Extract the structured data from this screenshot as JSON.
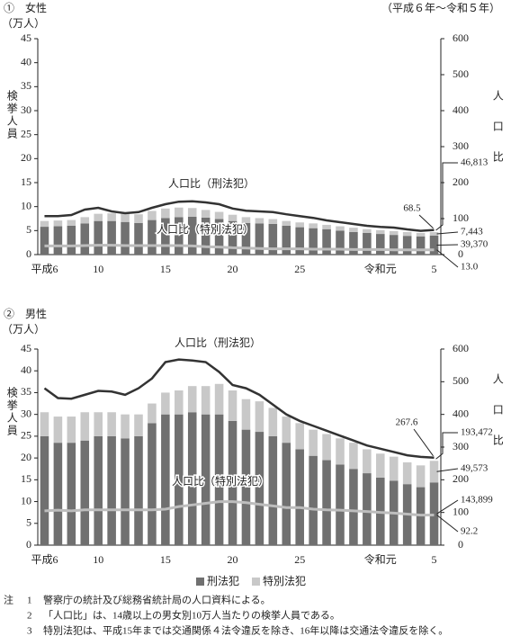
{
  "period": "（平成６年～令和５年）",
  "legend_items": [
    "刑法犯",
    "特別法犯"
  ],
  "notes_label": "注",
  "notes": [
    [
      "1",
      "警察庁の統計及び総務省統計局の人口資料による。"
    ],
    [
      "2",
      "「人口比」は、14歳以上の男女別10万人当たりの検挙人員である。"
    ],
    [
      "3",
      "特別法犯は、平成15年までは交通関係４法令違反を除き、16年以降は交通法令違反を除く。"
    ]
  ],
  "chart_data": [
    {
      "type": "bar",
      "stacked": true,
      "title": "①　女性",
      "y_unit": "（万人）",
      "y_label": "検挙人員",
      "y2_label": "人口比",
      "categories": [
        "平成6",
        null,
        null,
        null,
        "10",
        null,
        null,
        null,
        null,
        "15",
        null,
        null,
        null,
        null,
        "20",
        null,
        null,
        null,
        null,
        "25",
        null,
        null,
        null,
        null,
        null,
        "令和元",
        null,
        null,
        null,
        "5"
      ],
      "ylim": [
        0,
        45
      ],
      "yticks": [
        0,
        5,
        10,
        15,
        20,
        25,
        30,
        35,
        40,
        45
      ],
      "y2lim": [
        0,
        600
      ],
      "y2ticks": [
        0,
        100,
        200,
        300,
        400,
        500,
        600
      ],
      "total_label": "46,813",
      "legend": false,
      "series": [
        {
          "name": "刑法犯",
          "color": "#707070",
          "values": [
            5.8,
            5.9,
            6.0,
            6.5,
            7.0,
            7.0,
            6.8,
            6.6,
            7.2,
            7.6,
            7.8,
            7.9,
            7.7,
            7.4,
            7.0,
            6.6,
            6.5,
            6.4,
            6.0,
            5.7,
            5.5,
            5.3,
            5.0,
            4.7,
            4.5,
            4.3,
            4.1,
            3.9,
            3.8,
            3.937
          ],
          "value_labels": [
            null,
            null,
            null,
            null,
            null,
            null,
            null,
            null,
            null,
            null,
            null,
            null,
            null,
            null,
            null,
            null,
            null,
            null,
            null,
            null,
            null,
            null,
            null,
            null,
            null,
            null,
            null,
            null,
            null,
            "39,370"
          ]
        },
        {
          "name": "特別法犯",
          "color": "#c8c8c8",
          "values": [
            1.2,
            1.2,
            1.2,
            1.3,
            1.5,
            1.6,
            1.7,
            1.8,
            1.9,
            2.0,
            2.0,
            1.8,
            1.6,
            1.5,
            1.3,
            1.2,
            1.1,
            1.0,
            1.0,
            1.0,
            1.0,
            0.9,
            0.9,
            0.9,
            0.8,
            0.8,
            0.8,
            0.8,
            0.7,
            0.7443
          ],
          "value_labels": [
            null,
            null,
            null,
            null,
            null,
            null,
            null,
            null,
            null,
            null,
            null,
            null,
            null,
            null,
            null,
            null,
            null,
            null,
            null,
            null,
            null,
            null,
            null,
            null,
            null,
            null,
            null,
            null,
            null,
            "7,443"
          ]
        },
        {
          "name": "人口比（刑法犯）",
          "type": "line",
          "axis": "y2",
          "color": "#333333",
          "values": [
            107,
            107,
            110,
            125,
            130,
            120,
            115,
            118,
            130,
            140,
            147,
            148,
            145,
            140,
            128,
            122,
            120,
            118,
            112,
            107,
            102,
            95,
            90,
            85,
            80,
            77,
            75,
            70,
            66,
            68.5
          ],
          "value_labels": [
            null,
            null,
            null,
            null,
            null,
            null,
            null,
            null,
            null,
            null,
            null,
            null,
            null,
            null,
            null,
            null,
            null,
            null,
            null,
            null,
            null,
            null,
            null,
            null,
            null,
            null,
            null,
            null,
            null,
            "68.5"
          ]
        },
        {
          "name": "人口比（特別法犯）",
          "type": "line",
          "axis": "y2",
          "color": "#bdbdbd",
          "values": [
            24,
            24,
            24,
            25,
            26,
            26,
            25,
            25,
            25,
            25,
            25,
            24,
            22,
            21,
            19,
            18,
            17,
            16,
            16,
            16,
            15,
            15,
            15,
            14,
            14,
            14,
            13,
            13,
            13,
            13.0
          ],
          "value_labels": [
            null,
            null,
            null,
            null,
            null,
            null,
            null,
            null,
            null,
            null,
            null,
            null,
            null,
            null,
            null,
            null,
            null,
            null,
            null,
            null,
            null,
            null,
            null,
            null,
            null,
            null,
            null,
            null,
            null,
            "13.0"
          ]
        }
      ]
    },
    {
      "type": "bar",
      "stacked": true,
      "title": "②　男性",
      "y_unit": "（万人）",
      "y_label": "検挙人員",
      "y2_label": "人口比",
      "categories": [
        "平成6",
        null,
        null,
        null,
        "10",
        null,
        null,
        null,
        null,
        "15",
        null,
        null,
        null,
        null,
        "20",
        null,
        null,
        null,
        null,
        "25",
        null,
        null,
        null,
        null,
        null,
        "令和元",
        null,
        null,
        null,
        "5"
      ],
      "ylim": [
        0,
        45
      ],
      "yticks": [
        0,
        5,
        10,
        15,
        20,
        25,
        30,
        35,
        40,
        45
      ],
      "y2lim": [
        0,
        600
      ],
      "y2ticks": [
        0,
        100,
        200,
        300,
        400,
        500,
        600
      ],
      "total_label": "193,472",
      "legend": true,
      "series": [
        {
          "name": "刑法犯",
          "color": "#707070",
          "values": [
            25.0,
            23.5,
            23.5,
            24.0,
            25.0,
            25.0,
            24.5,
            25.0,
            28.0,
            30.0,
            30.0,
            30.5,
            30.0,
            30.0,
            28.5,
            26.5,
            26.0,
            25.0,
            23.5,
            22.0,
            20.5,
            19.5,
            18.5,
            17.5,
            16.5,
            15.5,
            14.8,
            14.0,
            13.3,
            14.3899
          ],
          "value_labels": [
            null,
            null,
            null,
            null,
            null,
            null,
            null,
            null,
            null,
            null,
            null,
            null,
            null,
            null,
            null,
            null,
            null,
            null,
            null,
            null,
            null,
            null,
            null,
            null,
            null,
            null,
            null,
            null,
            null,
            "143,899"
          ]
        },
        {
          "name": "特別法犯",
          "color": "#c8c8c8",
          "values": [
            5.5,
            6.0,
            6.0,
            6.5,
            5.5,
            5.5,
            5.5,
            5.0,
            4.5,
            5.0,
            5.5,
            6.0,
            6.5,
            7.0,
            7.0,
            7.0,
            7.0,
            6.5,
            6.0,
            6.0,
            6.0,
            6.0,
            6.0,
            6.0,
            5.5,
            5.5,
            5.5,
            5.0,
            5.0,
            4.9573
          ],
          "value_labels": [
            null,
            null,
            null,
            null,
            null,
            null,
            null,
            null,
            null,
            null,
            null,
            null,
            null,
            null,
            null,
            null,
            null,
            null,
            null,
            null,
            null,
            null,
            null,
            null,
            null,
            null,
            null,
            null,
            null,
            "49,573"
          ]
        },
        {
          "name": "人口比（刑法犯）",
          "type": "line",
          "axis": "y2",
          "color": "#333333",
          "values": [
            480,
            450,
            448,
            460,
            472,
            470,
            460,
            480,
            510,
            560,
            568,
            565,
            560,
            530,
            490,
            480,
            460,
            430,
            400,
            380,
            365,
            350,
            335,
            320,
            305,
            295,
            285,
            275,
            270,
            267.6
          ],
          "value_labels": [
            null,
            null,
            null,
            null,
            null,
            null,
            null,
            null,
            null,
            null,
            null,
            null,
            null,
            null,
            null,
            null,
            null,
            null,
            null,
            null,
            null,
            null,
            null,
            null,
            null,
            null,
            null,
            null,
            null,
            "267.6"
          ]
        },
        {
          "name": "人口比（特別法犯）",
          "type": "line",
          "axis": "y2",
          "color": "#bdbdbd",
          "values": [
            105,
            107,
            105,
            108,
            108,
            108,
            108,
            108,
            108,
            110,
            118,
            123,
            128,
            133,
            133,
            130,
            125,
            120,
            115,
            115,
            110,
            108,
            107,
            105,
            103,
            100,
            98,
            95,
            92,
            92.2
          ],
          "value_labels": [
            null,
            null,
            null,
            null,
            null,
            null,
            null,
            null,
            null,
            null,
            null,
            null,
            null,
            null,
            null,
            null,
            null,
            null,
            null,
            null,
            null,
            null,
            null,
            null,
            null,
            null,
            null,
            null,
            null,
            "92.2"
          ]
        }
      ]
    }
  ]
}
